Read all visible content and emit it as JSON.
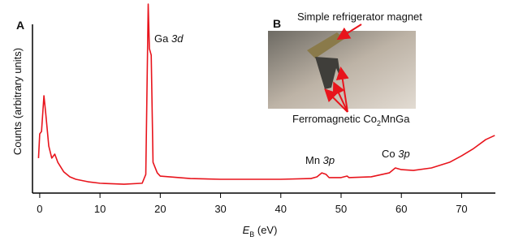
{
  "chart_data": {
    "type": "line",
    "panel_label": "A",
    "x_label_parts": [
      "E",
      "B",
      " (eV)"
    ],
    "y_label": "Counts (arbitrary units)",
    "xlim": [
      -1.2,
      75.6
    ],
    "xticks": [
      0,
      10,
      20,
      30,
      40,
      50,
      60,
      70
    ],
    "ylim": [
      0,
      100
    ],
    "series": [
      {
        "color": "#e8141c",
        "x": [
          -0.2,
          0,
          0.3,
          0.7,
          1.0,
          1.5,
          2.0,
          2.5,
          3,
          4,
          5,
          6,
          8,
          10,
          14,
          17,
          17.6,
          18.0,
          18.2,
          18.5,
          18.8,
          19.5,
          20,
          25,
          30,
          35,
          40,
          45,
          46,
          46.8,
          47.5,
          48,
          50,
          51,
          51.3,
          55,
          58,
          59,
          60,
          62,
          65,
          68,
          70,
          72,
          74,
          75.5
        ],
        "values": [
          18.5,
          31.3,
          32.6,
          51.5,
          42.1,
          24.9,
          18.5,
          20.6,
          16.3,
          11.2,
          8.6,
          7.3,
          6.0,
          5.2,
          4.7,
          5.2,
          9.9,
          100,
          76.4,
          73.0,
          16.3,
          10.7,
          9.0,
          7.7,
          7.3,
          7.3,
          7.3,
          7.7,
          8.6,
          10.7,
          9.9,
          8.2,
          8.2,
          9.0,
          8.2,
          8.6,
          10.7,
          13.3,
          12.4,
          12.0,
          13.3,
          16.3,
          19.7,
          23.6,
          28.3,
          30.5
        ]
      }
    ],
    "annotations": [
      [
        "Ga ",
        "3d"
      ],
      [
        "Mn ",
        "3p"
      ],
      [
        "Co ",
        "3p"
      ]
    ],
    "inset": {
      "panel_label": "B",
      "top_label": "Simple refrigerator magnet",
      "bottom_label_parts": [
        "Ferromagnetic Co",
        "2",
        "MnGa"
      ]
    }
  }
}
